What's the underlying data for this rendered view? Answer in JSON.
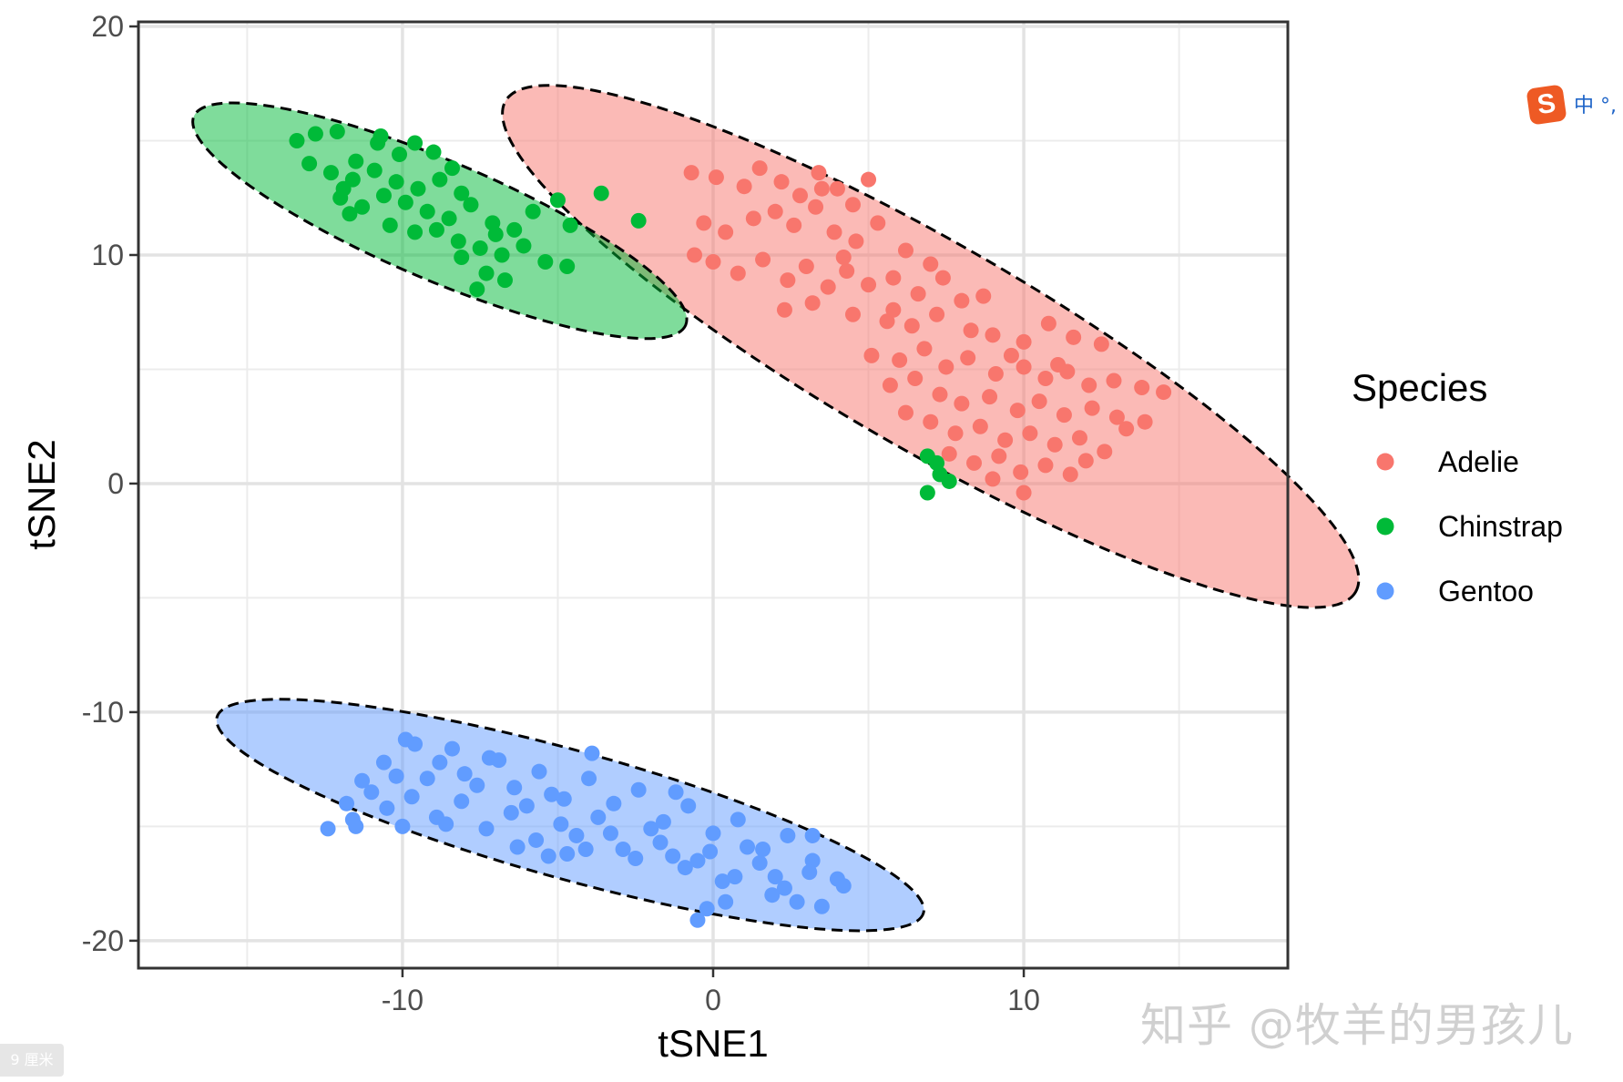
{
  "chart_data": {
    "type": "scatter",
    "xlabel": "tSNE1",
    "ylabel": "tSNE2",
    "xlim": [
      -18.5,
      18.5
    ],
    "ylim": [
      -21.2,
      20.2
    ],
    "x_ticks": [
      -10,
      0,
      10
    ],
    "y_ticks": [
      -20,
      -10,
      0,
      10,
      20
    ],
    "grid": true,
    "legend": {
      "title": "Species",
      "position": "right"
    },
    "series": [
      {
        "name": "Adelie",
        "color": "#F8766D",
        "ellipse": {
          "center": [
            7.0,
            6.0
          ],
          "semi_axes": [
            15.8,
            4.5
          ],
          "angle_deg": -30
        },
        "points": [
          [
            -0.7,
            13.6
          ],
          [
            0.1,
            13.4
          ],
          [
            1.0,
            13.0
          ],
          [
            1.5,
            13.8
          ],
          [
            2.2,
            13.2
          ],
          [
            2.8,
            12.6
          ],
          [
            3.4,
            13.6
          ],
          [
            4.0,
            12.9
          ],
          [
            4.5,
            12.2
          ],
          [
            5.0,
            13.3
          ],
          [
            -0.3,
            11.4
          ],
          [
            0.4,
            11.0
          ],
          [
            1.3,
            11.6
          ],
          [
            2.0,
            11.9
          ],
          [
            2.6,
            11.3
          ],
          [
            3.3,
            12.1
          ],
          [
            3.9,
            11.0
          ],
          [
            4.6,
            10.6
          ],
          [
            5.3,
            11.4
          ],
          [
            -0.6,
            10.0
          ],
          [
            0.0,
            9.7
          ],
          [
            0.8,
            9.2
          ],
          [
            1.6,
            9.8
          ],
          [
            2.4,
            8.9
          ],
          [
            3.0,
            9.5
          ],
          [
            3.7,
            8.6
          ],
          [
            4.3,
            9.3
          ],
          [
            5.0,
            8.7
          ],
          [
            5.8,
            9.0
          ],
          [
            6.6,
            8.3
          ],
          [
            7.4,
            9.0
          ],
          [
            8.0,
            8.0
          ],
          [
            8.7,
            8.2
          ],
          [
            2.3,
            7.6
          ],
          [
            3.2,
            7.9
          ],
          [
            4.5,
            7.4
          ],
          [
            5.6,
            7.1
          ],
          [
            6.4,
            6.9
          ],
          [
            7.2,
            7.4
          ],
          [
            8.3,
            6.7
          ],
          [
            9.0,
            6.5
          ],
          [
            10.0,
            6.2
          ],
          [
            10.8,
            7.0
          ],
          [
            11.6,
            6.4
          ],
          [
            12.5,
            6.1
          ],
          [
            5.1,
            5.6
          ],
          [
            6.0,
            5.4
          ],
          [
            6.8,
            5.9
          ],
          [
            7.5,
            5.1
          ],
          [
            8.2,
            5.5
          ],
          [
            9.1,
            4.8
          ],
          [
            10.0,
            5.1
          ],
          [
            10.7,
            4.6
          ],
          [
            11.4,
            4.9
          ],
          [
            12.1,
            4.3
          ],
          [
            12.9,
            4.5
          ],
          [
            13.8,
            4.2
          ],
          [
            14.5,
            4.0
          ],
          [
            5.7,
            4.3
          ],
          [
            6.5,
            4.6
          ],
          [
            7.3,
            3.9
          ],
          [
            8.0,
            3.5
          ],
          [
            8.9,
            3.8
          ],
          [
            9.8,
            3.2
          ],
          [
            10.5,
            3.6
          ],
          [
            11.3,
            3.0
          ],
          [
            12.2,
            3.3
          ],
          [
            13.0,
            2.9
          ],
          [
            13.9,
            2.7
          ],
          [
            6.2,
            3.1
          ],
          [
            7.0,
            2.7
          ],
          [
            7.8,
            2.2
          ],
          [
            8.6,
            2.5
          ],
          [
            9.4,
            1.9
          ],
          [
            10.2,
            2.2
          ],
          [
            11.0,
            1.7
          ],
          [
            11.8,
            2.0
          ],
          [
            12.6,
            1.4
          ],
          [
            7.6,
            1.3
          ],
          [
            8.4,
            0.9
          ],
          [
            9.2,
            1.2
          ],
          [
            9.9,
            0.5
          ],
          [
            10.7,
            0.8
          ],
          [
            11.5,
            0.4
          ],
          [
            9.0,
            0.2
          ],
          [
            10.0,
            -0.4
          ],
          [
            12.0,
            1.0
          ],
          [
            13.3,
            2.4
          ],
          [
            4.2,
            9.9
          ],
          [
            6.2,
            10.2
          ],
          [
            7.0,
            9.6
          ],
          [
            3.5,
            12.9
          ],
          [
            5.8,
            7.6
          ],
          [
            9.6,
            5.6
          ],
          [
            11.1,
            5.2
          ]
        ]
      },
      {
        "name": "Chinstrap",
        "color": "#00BA38",
        "ellipse": {
          "center": [
            -8.8,
            11.5
          ],
          "semi_axes": [
            8.6,
            2.6
          ],
          "angle_deg": -23
        },
        "points": [
          [
            -13.4,
            15.0
          ],
          [
            -12.8,
            15.3
          ],
          [
            -12.1,
            15.4
          ],
          [
            -11.5,
            14.1
          ],
          [
            -10.8,
            14.9
          ],
          [
            -10.1,
            14.4
          ],
          [
            -9.6,
            14.9
          ],
          [
            -13.0,
            14.0
          ],
          [
            -12.3,
            13.6
          ],
          [
            -11.6,
            13.3
          ],
          [
            -10.9,
            13.7
          ],
          [
            -10.2,
            13.2
          ],
          [
            -9.5,
            12.9
          ],
          [
            -8.8,
            13.3
          ],
          [
            -8.1,
            12.7
          ],
          [
            -12.0,
            12.5
          ],
          [
            -11.3,
            12.1
          ],
          [
            -10.6,
            12.6
          ],
          [
            -9.9,
            12.3
          ],
          [
            -9.2,
            11.9
          ],
          [
            -8.5,
            11.6
          ],
          [
            -7.8,
            12.2
          ],
          [
            -7.1,
            11.4
          ],
          [
            -6.4,
            11.1
          ],
          [
            -5.8,
            11.9
          ],
          [
            -5.0,
            12.4
          ],
          [
            -4.6,
            11.3
          ],
          [
            -11.7,
            11.8
          ],
          [
            -10.4,
            11.3
          ],
          [
            -9.6,
            11.0
          ],
          [
            -8.9,
            11.1
          ],
          [
            -8.2,
            10.6
          ],
          [
            -7.5,
            10.3
          ],
          [
            -6.8,
            10.0
          ],
          [
            -6.1,
            10.4
          ],
          [
            -5.4,
            9.7
          ],
          [
            -4.7,
            9.5
          ],
          [
            -7.3,
            9.2
          ],
          [
            -8.1,
            9.9
          ],
          [
            -6.7,
            8.9
          ],
          [
            -7.6,
            8.5
          ],
          [
            -3.6,
            12.7
          ],
          [
            -2.4,
            11.5
          ],
          [
            -9.0,
            14.5
          ],
          [
            -10.7,
            15.2
          ],
          [
            -11.9,
            12.9
          ],
          [
            -8.4,
            13.8
          ],
          [
            -7.0,
            10.9
          ],
          [
            6.9,
            1.2
          ],
          [
            7.3,
            0.4
          ],
          [
            7.6,
            0.1
          ],
          [
            6.9,
            -0.4
          ],
          [
            7.2,
            0.9
          ]
        ]
      },
      {
        "name": "Gentoo",
        "color": "#619CFF",
        "ellipse": {
          "center": [
            -4.6,
            -14.5
          ],
          "semi_axes": [
            11.8,
            2.8
          ],
          "angle_deg": -15.5
        },
        "points": [
          [
            -12.4,
            -15.1
          ],
          [
            -11.6,
            -14.7
          ],
          [
            -11.0,
            -13.5
          ],
          [
            -10.2,
            -12.8
          ],
          [
            -9.6,
            -11.4
          ],
          [
            -8.8,
            -12.2
          ],
          [
            -8.0,
            -12.7
          ],
          [
            -7.2,
            -12.0
          ],
          [
            -6.4,
            -13.3
          ],
          [
            -5.6,
            -12.6
          ],
          [
            -4.8,
            -13.8
          ],
          [
            -4.0,
            -12.9
          ],
          [
            -3.2,
            -14.0
          ],
          [
            -2.4,
            -13.4
          ],
          [
            -1.6,
            -14.8
          ],
          [
            -0.8,
            -14.1
          ],
          [
            0.0,
            -15.3
          ],
          [
            0.8,
            -14.7
          ],
          [
            1.6,
            -16.0
          ],
          [
            2.4,
            -15.4
          ],
          [
            3.2,
            -16.5
          ],
          [
            4.0,
            -17.3
          ],
          [
            -11.3,
            -13.0
          ],
          [
            -10.5,
            -14.2
          ],
          [
            -9.7,
            -13.7
          ],
          [
            -8.9,
            -14.6
          ],
          [
            -8.1,
            -13.9
          ],
          [
            -7.3,
            -15.1
          ],
          [
            -6.5,
            -14.4
          ],
          [
            -5.7,
            -15.6
          ],
          [
            -4.9,
            -14.9
          ],
          [
            -4.1,
            -16.0
          ],
          [
            -3.3,
            -15.3
          ],
          [
            -2.5,
            -16.4
          ],
          [
            -1.7,
            -15.7
          ],
          [
            -0.9,
            -16.8
          ],
          [
            -0.1,
            -16.1
          ],
          [
            0.7,
            -17.2
          ],
          [
            1.5,
            -16.6
          ],
          [
            2.3,
            -17.7
          ],
          [
            3.1,
            -17.0
          ],
          [
            -11.8,
            -14.0
          ],
          [
            -10.0,
            -15.0
          ],
          [
            -9.2,
            -12.9
          ],
          [
            -6.9,
            -12.1
          ],
          [
            -5.2,
            -13.6
          ],
          [
            -3.7,
            -14.6
          ],
          [
            -2.0,
            -15.1
          ],
          [
            -0.5,
            -16.5
          ],
          [
            1.1,
            -15.9
          ],
          [
            2.0,
            -17.2
          ],
          [
            2.7,
            -18.3
          ],
          [
            3.5,
            -18.5
          ],
          [
            -0.5,
            -19.1
          ],
          [
            -10.6,
            -12.2
          ],
          [
            -8.4,
            -11.6
          ],
          [
            -7.6,
            -13.2
          ],
          [
            -6.0,
            -14.1
          ],
          [
            -4.4,
            -15.4
          ],
          [
            -2.9,
            -16.0
          ],
          [
            -1.3,
            -16.3
          ],
          [
            0.3,
            -17.4
          ],
          [
            1.9,
            -18.0
          ],
          [
            -3.9,
            -11.8
          ],
          [
            -1.2,
            -13.5
          ],
          [
            -5.3,
            -16.3
          ],
          [
            -0.2,
            -18.6
          ],
          [
            3.2,
            -15.4
          ],
          [
            4.2,
            -17.6
          ],
          [
            -8.6,
            -14.9
          ],
          [
            -6.3,
            -15.9
          ],
          [
            -9.9,
            -11.2
          ],
          [
            -11.5,
            -15.0
          ],
          [
            -4.7,
            -16.2
          ],
          [
            0.4,
            -18.3
          ]
        ]
      }
    ]
  },
  "decor": {
    "ime_logo": "S",
    "ime_text": "中 °,",
    "watermark": "知乎 @牧羊的男孩儿",
    "ruler_tag": "9 厘米"
  }
}
